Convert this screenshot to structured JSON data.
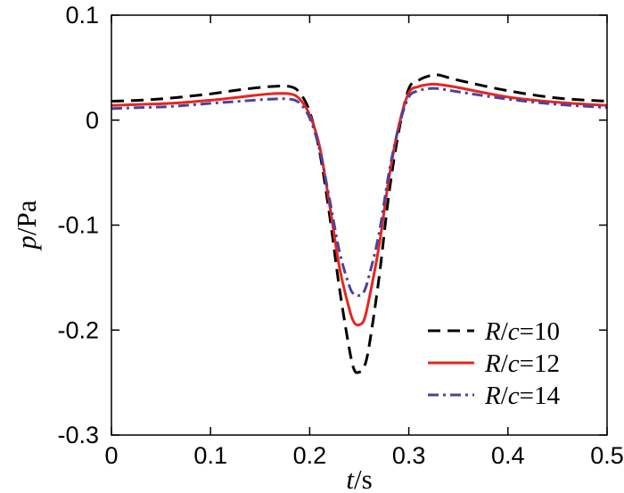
{
  "chart_data": {
    "type": "line",
    "xlabel": {
      "var": "t",
      "unit": "/s"
    },
    "ylabel": {
      "var": "p",
      "unit": "/Pa"
    },
    "xlim": [
      0,
      0.5
    ],
    "ylim": [
      -0.3,
      0.1
    ],
    "xticks": [
      "0",
      "0.1",
      "0.2",
      "0.3",
      "0.4",
      "0.5"
    ],
    "yticks": [
      "0.1",
      "0",
      "-0.1",
      "-0.2",
      "-0.3"
    ],
    "grid": false,
    "legend_position": "bottom-right",
    "series": [
      {
        "name_var": "R/c",
        "name_val": "=10",
        "color": "#000000",
        "style": "dashed",
        "x": [
          0,
          0.03,
          0.06,
          0.1,
          0.13,
          0.16,
          0.18,
          0.19,
          0.2,
          0.21,
          0.22,
          0.23,
          0.24,
          0.245,
          0.25,
          0.255,
          0.26,
          0.27,
          0.28,
          0.29,
          0.3,
          0.31,
          0.32,
          0.33,
          0.35,
          0.4,
          0.45,
          0.5
        ],
        "y": [
          0.018,
          0.019,
          0.021,
          0.025,
          0.029,
          0.032,
          0.032,
          0.026,
          0.008,
          -0.03,
          -0.09,
          -0.16,
          -0.218,
          -0.238,
          -0.24,
          -0.235,
          -0.215,
          -0.15,
          -0.07,
          -0.01,
          0.03,
          0.038,
          0.042,
          0.043,
          0.038,
          0.028,
          0.021,
          0.018
        ]
      },
      {
        "name_var": "R/c",
        "name_val": "=12",
        "color": "#e8251e",
        "style": "solid",
        "x": [
          0,
          0.03,
          0.06,
          0.1,
          0.13,
          0.16,
          0.18,
          0.19,
          0.2,
          0.21,
          0.22,
          0.23,
          0.24,
          0.245,
          0.25,
          0.255,
          0.26,
          0.27,
          0.28,
          0.29,
          0.3,
          0.31,
          0.32,
          0.33,
          0.35,
          0.4,
          0.45,
          0.5
        ],
        "y": [
          0.014,
          0.015,
          0.016,
          0.019,
          0.022,
          0.025,
          0.025,
          0.02,
          0.005,
          -0.025,
          -0.08,
          -0.14,
          -0.18,
          -0.193,
          -0.195,
          -0.19,
          -0.17,
          -0.12,
          -0.055,
          -0.005,
          0.026,
          0.032,
          0.034,
          0.034,
          0.031,
          0.022,
          0.017,
          0.014
        ]
      },
      {
        "name_var": "R/c",
        "name_val": "=14",
        "color": "#4a43a0",
        "style": "dashdot",
        "x": [
          0,
          0.03,
          0.06,
          0.1,
          0.13,
          0.16,
          0.18,
          0.19,
          0.2,
          0.21,
          0.22,
          0.23,
          0.24,
          0.245,
          0.25,
          0.255,
          0.26,
          0.27,
          0.28,
          0.29,
          0.3,
          0.31,
          0.32,
          0.33,
          0.35,
          0.4,
          0.45,
          0.5
        ],
        "y": [
          0.011,
          0.012,
          0.013,
          0.016,
          0.018,
          0.02,
          0.02,
          0.016,
          0.002,
          -0.028,
          -0.075,
          -0.125,
          -0.158,
          -0.166,
          -0.167,
          -0.163,
          -0.148,
          -0.108,
          -0.05,
          -0.006,
          0.022,
          0.028,
          0.03,
          0.03,
          0.027,
          0.02,
          0.015,
          0.012
        ]
      }
    ]
  }
}
